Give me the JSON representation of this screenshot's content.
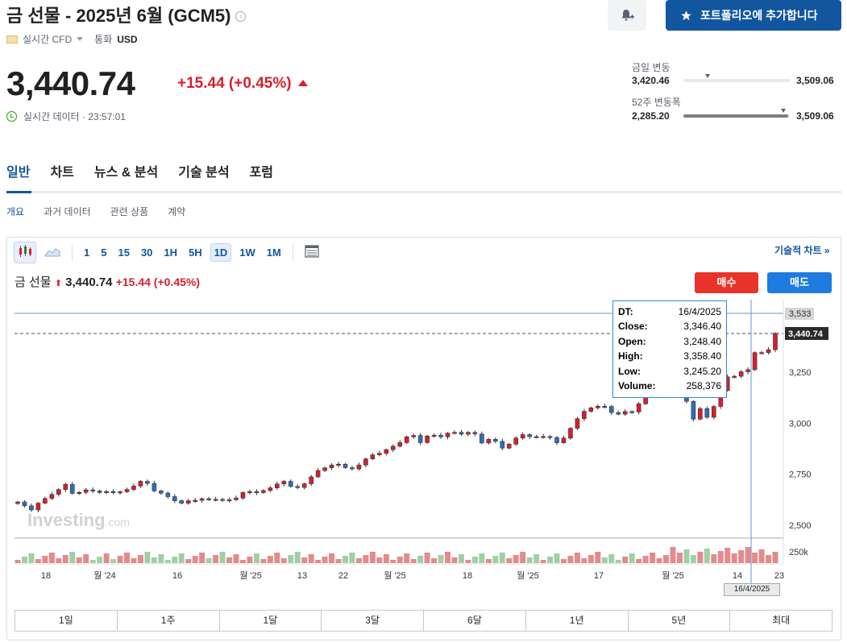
{
  "header": {
    "title": "금 선물 - 2025년 6월 (GCM5)",
    "info_glyph": "i",
    "portfolio_label": "포트폴리오에 추가합니다",
    "realtime_label": "실시간 CFD",
    "currency_label": "통화",
    "currency": "USD"
  },
  "quote": {
    "price": "3,440.74",
    "change": "+15.44 (+0.45%)",
    "status": "실시간 데이터 · 23:57:01"
  },
  "ranges": {
    "day_label": "금일 변동",
    "day_low": "3,420.46",
    "day_high": "3,509.06",
    "week52_label": "52주 변동폭",
    "week52_low": "2,285.20",
    "week52_high": "3,509.06"
  },
  "tabs": [
    "일반",
    "차트",
    "뉴스 & 분석",
    "기술 분석",
    "포럼"
  ],
  "subtabs": [
    "개요",
    "과거 데이터",
    "관련 상품",
    "계약"
  ],
  "toolbar": {
    "intervals": [
      "1",
      "5",
      "15",
      "30",
      "1H",
      "5H",
      "1D",
      "1W",
      "1M"
    ],
    "tech_chart_label": "기술적 차트 »"
  },
  "chart_header": {
    "name": "금 선물",
    "price": "3,440.74",
    "change": "+15.44 (+0.45%)",
    "buy_label": "매수",
    "sell_label": "매도",
    "watermark": "Investing",
    "watermark_suffix": ".com"
  },
  "tooltip": {
    "rows": [
      {
        "k": "DT:",
        "v": "16/4/2025"
      },
      {
        "k": "Close:",
        "v": "3,346.40"
      },
      {
        "k": "Open:",
        "v": "3,248.40"
      },
      {
        "k": "High:",
        "v": "3,358.40"
      },
      {
        "k": "Low:",
        "v": "3,245.20"
      },
      {
        "k": "Volume:",
        "v": "258,376"
      }
    ]
  },
  "crosshair_date": "16/4/2025",
  "periods": [
    "1일",
    "1주",
    "1달",
    "3달",
    "6달",
    "1년",
    "5년",
    "최대"
  ],
  "chart_data": {
    "type": "candlestick",
    "y_ticks": [
      "2,500",
      "2,750",
      "3,000",
      "3,250"
    ],
    "y_range": [
      2440,
      3560
    ],
    "price_tag": "3,440.74",
    "high_tag": "3,533",
    "volume_tick": "250k",
    "x_ticks": [
      "18",
      "월 '24",
      "16",
      "월 '25",
      "13",
      "22",
      "월 '25",
      "18",
      "월 '25",
      "17",
      "월 '25",
      "14",
      "23"
    ],
    "closes": [
      2614,
      2595,
      2575,
      2608,
      2631,
      2651,
      2675,
      2700,
      2656,
      2661,
      2673,
      2668,
      2660,
      2665,
      2662,
      2664,
      2675,
      2692,
      2715,
      2705,
      2668,
      2657,
      2640,
      2620,
      2608,
      2620,
      2622,
      2630,
      2625,
      2627,
      2624,
      2625,
      2633,
      2660,
      2665,
      2660,
      2670,
      2683,
      2702,
      2715,
      2690,
      2685,
      2703,
      2737,
      2768,
      2781,
      2795,
      2799,
      2782,
      2776,
      2795,
      2825,
      2845,
      2852,
      2870,
      2887,
      2905,
      2933,
      2940,
      2905,
      2937,
      2941,
      2933,
      2951,
      2955,
      2946,
      2955,
      2947,
      2903,
      2921,
      2911,
      2878,
      2897,
      2927,
      2944,
      2934,
      2932,
      2935,
      2929,
      2904,
      2927,
      2975,
      3022,
      3058,
      3075,
      3083,
      3082,
      3052,
      3044,
      3057,
      3055,
      3095,
      3131,
      3151,
      3152,
      3160,
      3178,
      3220,
      3107,
      3020,
      3071,
      3029,
      3082,
      3160,
      3227,
      3230,
      3252,
      3262,
      3346,
      3346,
      3360,
      3440
    ]
  }
}
